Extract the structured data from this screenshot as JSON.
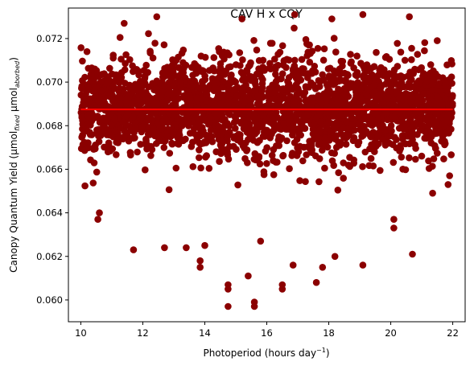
{
  "chart_data": {
    "type": "scatter",
    "title": "CAV H x CQY",
    "xlabel": {
      "main": "Photoperiod (hours day",
      "sup": "−1",
      "end": ")"
    },
    "ylabel": {
      "main": "Canopy Quantum Yield (μmol",
      "sub1": "fixed",
      "mid": " μmol",
      "sub2": "aborbed",
      "end": ")"
    },
    "xlim": [
      9.6,
      22.4
    ],
    "ylim": [
      0.059,
      0.0734
    ],
    "xticks": [
      10,
      12,
      14,
      16,
      18,
      20,
      22
    ],
    "yticks": [
      0.06,
      0.062,
      0.064,
      0.066,
      0.068,
      0.07,
      0.072
    ],
    "ytick_labels": [
      "0.060",
      "0.062",
      "0.064",
      "0.066",
      "0.068",
      "0.070",
      "0.072"
    ],
    "grid": false,
    "x_range": [
      10,
      22
    ],
    "y_center": 0.0688,
    "y_spread": 0.0012,
    "point_color": "#8b0000",
    "trend_line": {
      "color": "#ff0000",
      "x": [
        10,
        22
      ],
      "y": [
        0.06875,
        0.06875
      ]
    },
    "outliers": [
      {
        "x": 14.75,
        "y": 0.0597
      },
      {
        "x": 15.6,
        "y": 0.0597
      },
      {
        "x": 15.6,
        "y": 0.0599
      },
      {
        "x": 14.75,
        "y": 0.0605
      },
      {
        "x": 14.75,
        "y": 0.0607
      },
      {
        "x": 16.5,
        "y": 0.0605
      },
      {
        "x": 16.5,
        "y": 0.0607
      },
      {
        "x": 15.4,
        "y": 0.0611
      },
      {
        "x": 17.6,
        "y": 0.0608
      },
      {
        "x": 11.7,
        "y": 0.0623
      },
      {
        "x": 13.85,
        "y": 0.0615
      },
      {
        "x": 13.85,
        "y": 0.0618
      },
      {
        "x": 16.85,
        "y": 0.0616
      },
      {
        "x": 20.7,
        "y": 0.0621
      },
      {
        "x": 15.8,
        "y": 0.0627
      },
      {
        "x": 19.1,
        "y": 0.0616
      },
      {
        "x": 18.2,
        "y": 0.062
      },
      {
        "x": 17.8,
        "y": 0.0615
      },
      {
        "x": 12.45,
        "y": 0.073
      },
      {
        "x": 15.2,
        "y": 0.0729
      },
      {
        "x": 16.9,
        "y": 0.0731
      },
      {
        "x": 18.1,
        "y": 0.0729
      },
      {
        "x": 19.1,
        "y": 0.0731
      },
      {
        "x": 20.6,
        "y": 0.073
      },
      {
        "x": 11.4,
        "y": 0.0727
      },
      {
        "x": 21.5,
        "y": 0.0719
      },
      {
        "x": 10.2,
        "y": 0.0714
      },
      {
        "x": 21.9,
        "y": 0.0688
      },
      {
        "x": 10.05,
        "y": 0.0697
      },
      {
        "x": 21.85,
        "y": 0.0653
      },
      {
        "x": 10.55,
        "y": 0.0637
      },
      {
        "x": 10.6,
        "y": 0.064
      },
      {
        "x": 21.35,
        "y": 0.0649
      },
      {
        "x": 21.9,
        "y": 0.0657
      },
      {
        "x": 20.1,
        "y": 0.0633
      },
      {
        "x": 20.1,
        "y": 0.0637
      },
      {
        "x": 12.7,
        "y": 0.0624
      },
      {
        "x": 14.0,
        "y": 0.0625
      },
      {
        "x": 13.4,
        "y": 0.0624
      }
    ]
  }
}
